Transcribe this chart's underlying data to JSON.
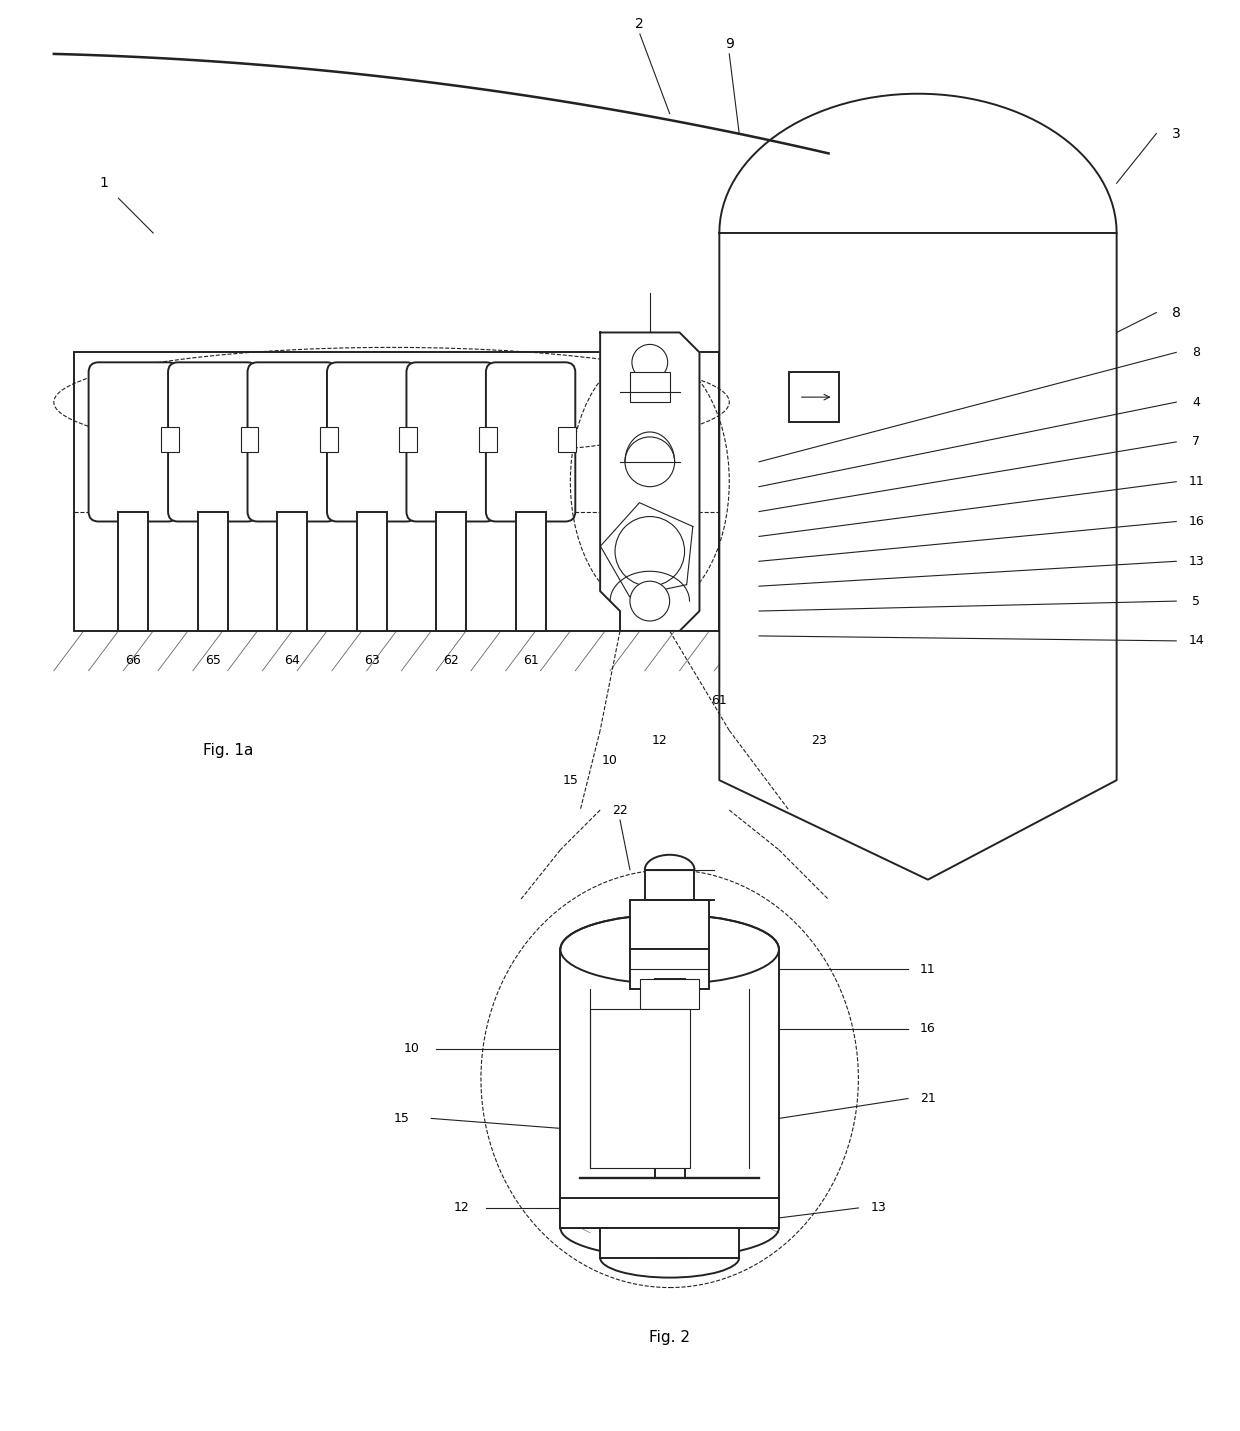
{
  "fig_width": 12.4,
  "fig_height": 14.31,
  "dpi": 100,
  "bg_color": "#ffffff",
  "line_color": "#222222",
  "line_width": 1.4,
  "thin_line": 0.8,
  "fig1a_label": "Fig. 1a",
  "fig2_label": "Fig. 2",
  "plug_labels": [
    "66",
    "65",
    "64",
    "63",
    "62",
    "61"
  ],
  "plug_x": [
    13,
    21,
    29,
    37,
    45,
    53
  ],
  "labels_right_fig1": [
    "8",
    "4",
    "7",
    "11",
    "16",
    "13",
    "5",
    "14"
  ],
  "labels_right_fig1_y": [
    108,
    103,
    99,
    95,
    91,
    87,
    83,
    79
  ]
}
